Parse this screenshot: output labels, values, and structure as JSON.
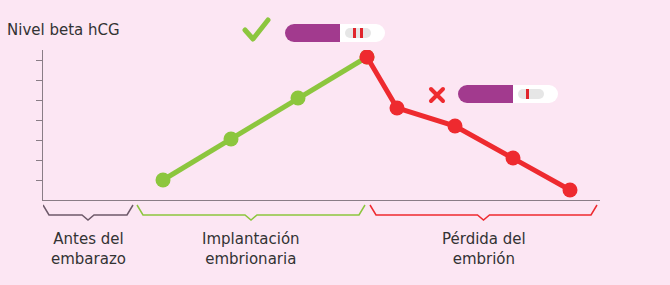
{
  "chart_data": {
    "type": "line",
    "ylabel": "Nivel beta hCG",
    "series": [
      {
        "color": "#8cc63e",
        "marker": "circle",
        "line_style": "solid",
        "x": [
          12,
          18.8,
          25.5,
          32.4
        ],
        "values": [
          1,
          3.05,
          5.1,
          7.15
        ]
      },
      {
        "color": "#ee2a2f",
        "marker": "circle",
        "line_style": "solid",
        "x": [
          32.4,
          35.4,
          41.2,
          47,
          52.7
        ],
        "values": [
          7.15,
          4.6,
          3.7,
          2.1,
          0.5
        ]
      }
    ],
    "xlim": [
      0,
      55.7
    ],
    "xticks": [],
    "ylim": [
      0,
      7.5
    ],
    "yticks": [
      1,
      2,
      3,
      4,
      5,
      6,
      7
    ],
    "tick_labels": false,
    "grid": false,
    "regions": [
      {
        "label": "Antes del\nembarazo",
        "x": [
          0,
          9
        ]
      },
      {
        "label": "Implantación\nembrionaria",
        "x": [
          9.4,
          32.2
        ]
      },
      {
        "label": "Pérdida del\nembrión",
        "x": [
          32.7,
          55.4
        ]
      }
    ]
  }
}
